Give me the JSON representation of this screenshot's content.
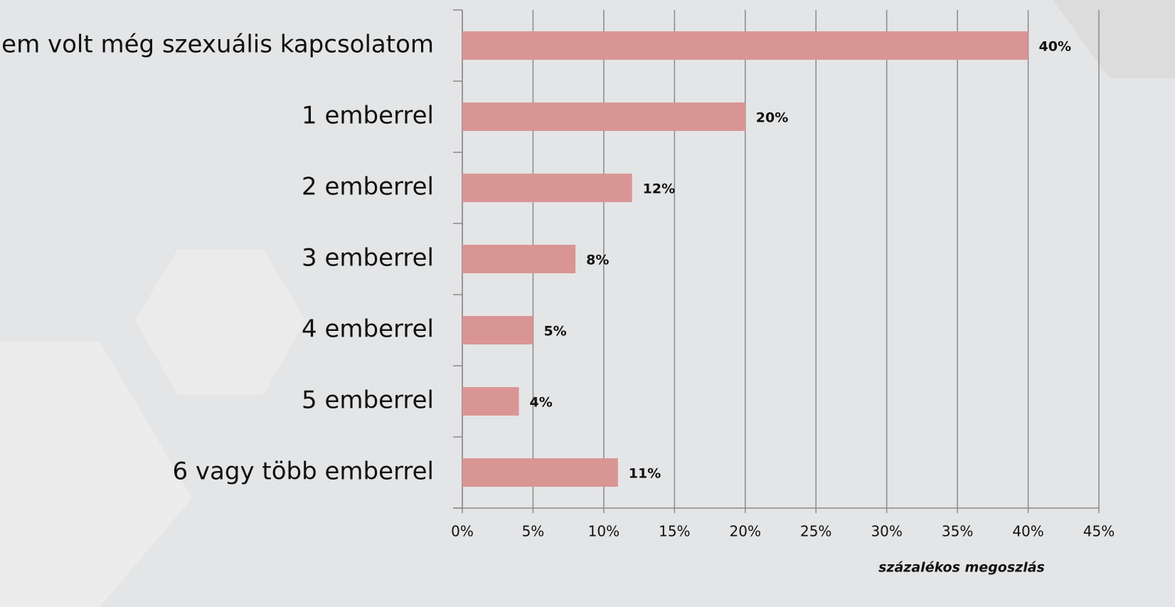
{
  "chart_data": {
    "type": "bar",
    "orientation": "horizontal",
    "categories": [
      "nem volt még szexuális kapcsolatom",
      "1 emberrel",
      "2 emberrel",
      "3 emberrel",
      "4 emberrel",
      "5 emberrel",
      "6 vagy több emberrel"
    ],
    "values": [
      40,
      20,
      12,
      8,
      5,
      4,
      11
    ],
    "value_labels": [
      "40%",
      "20%",
      "12%",
      "8%",
      "5%",
      "4%",
      "11%"
    ],
    "color": "#d99594",
    "xlim": [
      0,
      45
    ],
    "xticks": [
      {
        "value": 0,
        "label": "0%"
      },
      {
        "value": 5,
        "label": "5%"
      },
      {
        "value": 10,
        "label": "10%"
      },
      {
        "value": 15,
        "label": "15%"
      },
      {
        "value": 20,
        "label": "20%"
      },
      {
        "value": 25,
        "label": "25%"
      },
      {
        "value": 30,
        "label": "30%"
      },
      {
        "value": 35,
        "label": "35%"
      },
      {
        "value": 40,
        "label": "40%"
      },
      {
        "value": 45,
        "label": "45%"
      }
    ],
    "xlabel": "százalékos megoszlás",
    "grid": true
  }
}
